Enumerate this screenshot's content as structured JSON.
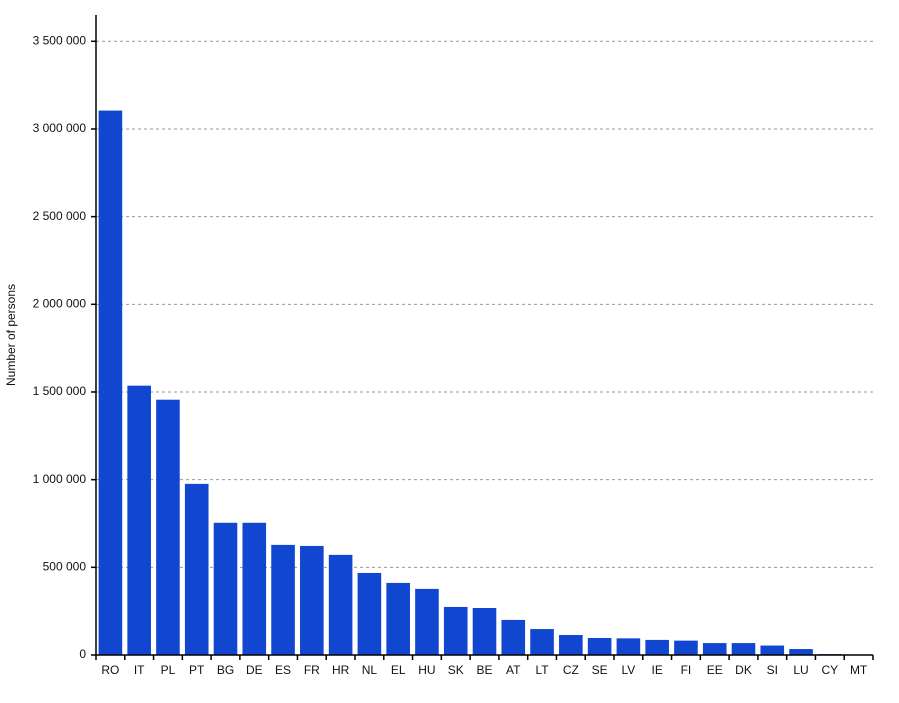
{
  "chart_data": {
    "type": "bar",
    "y_label": "Number of persons",
    "categories": [
      "RO",
      "IT",
      "PL",
      "PT",
      "BG",
      "DE",
      "ES",
      "FR",
      "HR",
      "NL",
      "EL",
      "HU",
      "SK",
      "BE",
      "AT",
      "LT",
      "CZ",
      "SE",
      "LV",
      "IE",
      "FI",
      "EE",
      "DK",
      "SI",
      "LU",
      "CY",
      "MT"
    ],
    "values": [
      3105000,
      1536000,
      1456000,
      976000,
      754000,
      754000,
      628000,
      622000,
      571000,
      468000,
      411000,
      377000,
      274000,
      268000,
      200000,
      148000,
      114000,
      97000,
      95000,
      86000,
      82000,
      68000,
      68000,
      54000,
      34000,
      5000,
      0
    ],
    "color": "#1147d0",
    "ylim": [
      0,
      3650000
    ],
    "yticks": [
      0,
      {
        "value": 500000,
        "label": "500 000"
      },
      {
        "value": 1000000,
        "label": "1 000 000"
      },
      {
        "value": 1500000,
        "label": "1 500 000"
      },
      {
        "value": 2000000,
        "label": "2 000 000"
      },
      {
        "value": 2500000,
        "label": "2 500 000"
      },
      {
        "value": 3000000,
        "label": "3 000 000"
      },
      {
        "value": 3500000,
        "label": "3 500 000"
      }
    ],
    "grid": true
  }
}
